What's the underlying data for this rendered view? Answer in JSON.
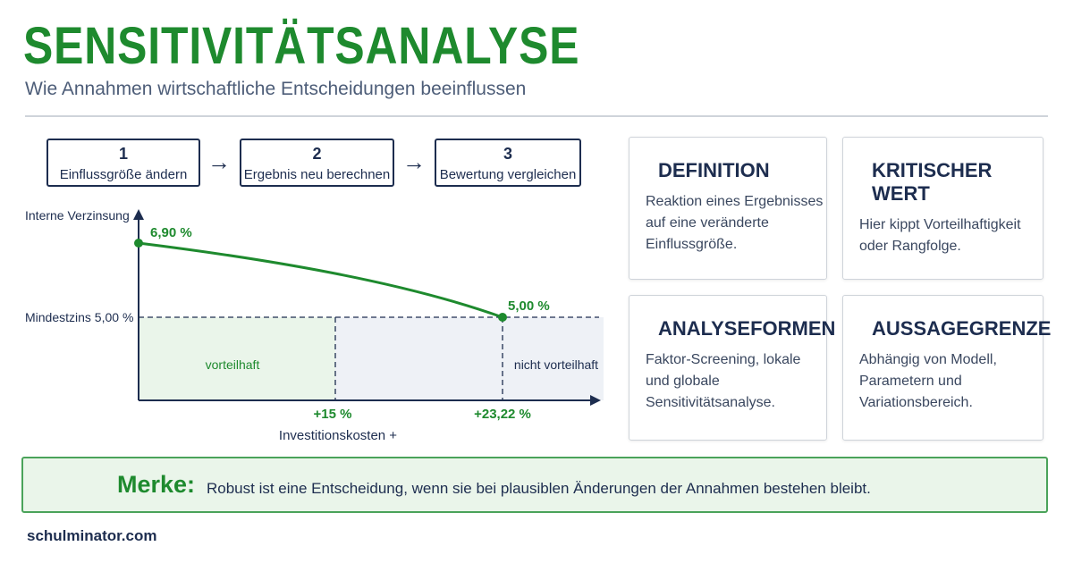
{
  "header": {
    "title": "SENSITIVITÄTSANALYSE",
    "subtitle": "Wie Annahmen wirtschaftliche Entscheidungen beeinflussen"
  },
  "steps": [
    {
      "number": "1",
      "label": "Einflussgröße ändern"
    },
    {
      "number": "2",
      "label": "Ergebnis neu berechnen"
    },
    {
      "number": "3",
      "label": "Bewertung vergleichen"
    }
  ],
  "chart": {
    "y_label": "Interne Verzinsung",
    "x_label": "Investitionskosten +",
    "start_label": "6,90 %",
    "end_label": "5,00 %",
    "threshold_label": "Mindestzins 5,00 %",
    "x_ticks": [
      "+15 %",
      "+23,22 %"
    ],
    "zone_good": "vorteilhaft",
    "zone_bad": "nicht vorteilhaft"
  },
  "cards": [
    {
      "title": "DEFINITION",
      "lines": [
        "Reaktion eines Ergebnisses",
        "auf eine veränderte",
        "Einflussgröße."
      ]
    },
    {
      "title": "KRITISCHER WERT",
      "lines": [
        "Hier kippt Vorteilhaftigkeit",
        "oder Rangfolge."
      ]
    },
    {
      "title": "ANALYSEFORMEN",
      "lines": [
        "Faktor-Screening, lokale",
        "und globale",
        "Sensitivitätsanalyse."
      ]
    },
    {
      "title": "AUSSAGEGRENZE",
      "lines": [
        "Abhängig von Modell,",
        "Parametern und",
        "Variationsbereich."
      ]
    }
  ],
  "note": {
    "label": "Merke:",
    "text": "Robust ist eine Entscheidung, wenn sie bei plausiblen Änderungen der Annahmen bestehen bleibt."
  },
  "footer": {
    "brand": "schulminator.com"
  }
}
